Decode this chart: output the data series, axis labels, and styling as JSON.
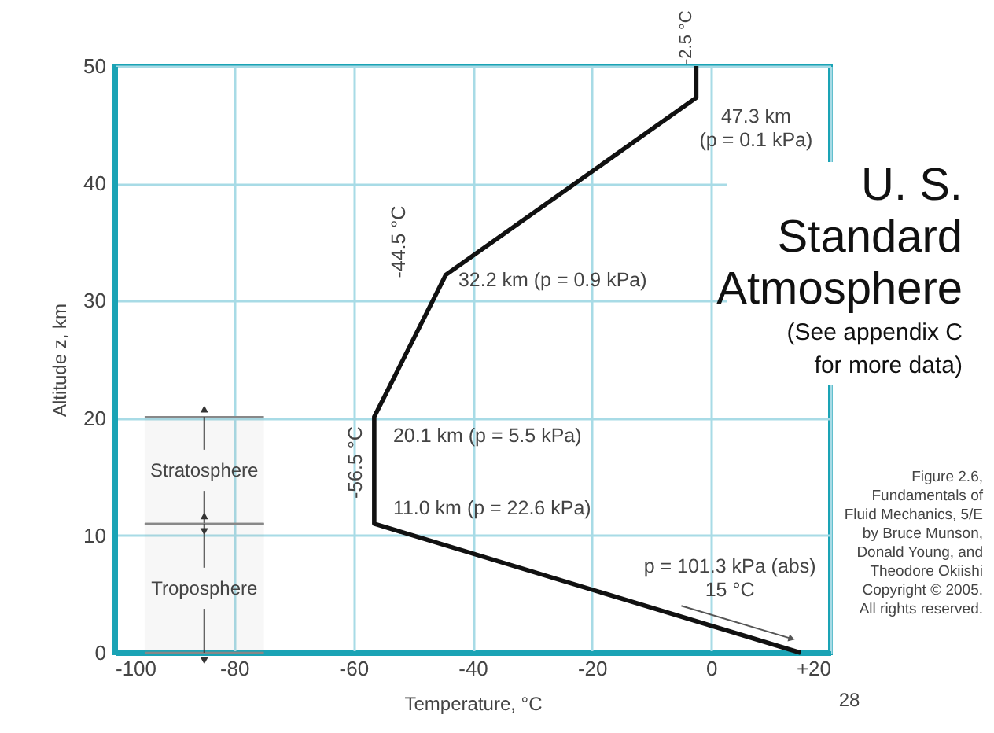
{
  "chart_data": {
    "type": "line",
    "title": "U. S. Standard Atmosphere",
    "subtitle": "(See appendix C for more data)",
    "xlabel": "Temperature, °C",
    "ylabel": "Altitude z, km",
    "x": [
      15,
      -56.5,
      -56.5,
      -44.5,
      -2.5,
      -2.5
    ],
    "series": [
      {
        "color": "#111111",
        "values": [
          0,
          11.0,
          20.1,
          32.2,
          47.3,
          50
        ]
      }
    ],
    "xlim": [
      -100,
      20
    ],
    "ylim": [
      0,
      50
    ],
    "xticks": [
      -100,
      -80,
      -60,
      -40,
      -20,
      0,
      {
        "value": 20,
        "label": "+20"
      }
    ],
    "yticks": [
      0,
      10,
      20,
      30,
      40,
      50
    ],
    "grid": true,
    "marker": "none",
    "line_style": "solid",
    "bands": [
      {
        "axis": "y",
        "from": 11.0,
        "to": 20.1,
        "label": "Stratosphere",
        "color": "#888888"
      },
      {
        "axis": "y",
        "from": 0,
        "to": 11.0,
        "label": "Troposphere",
        "color": "#888888"
      }
    ],
    "annotations": [
      {
        "text": "-2.5 °C",
        "x": -2.5,
        "y": 50
      },
      {
        "text": "47.3 km (p = 0.1 kPa)",
        "x": -2.5,
        "y": 47.3
      },
      {
        "text": "-44.5 °C",
        "x": -44.5,
        "y": 32.2
      },
      {
        "text": "32.2 km (p = 0.9 kPa)",
        "x": -44.5,
        "y": 32.2
      },
      {
        "text": "-56.5 °C",
        "x": -56.5,
        "y": 20.1
      },
      {
        "text": "20.1 km (p = 5.5 kPa)",
        "x": -56.5,
        "y": 20.1
      },
      {
        "text": "11.0 km (p = 22.6 kPa)",
        "x": -56.5,
        "y": 11.0
      },
      {
        "text": "p = 101.3 kPa (abs) 15 °C",
        "x": 15,
        "y": 0
      },
      "Figure 2.6, Fundamentals of Fluid Mechanics, 5/E by Bruce Munson, Donald Young, and Theodore Okiishi Copyright © 2005. All rights reserved.",
      "28"
    ]
  }
}
